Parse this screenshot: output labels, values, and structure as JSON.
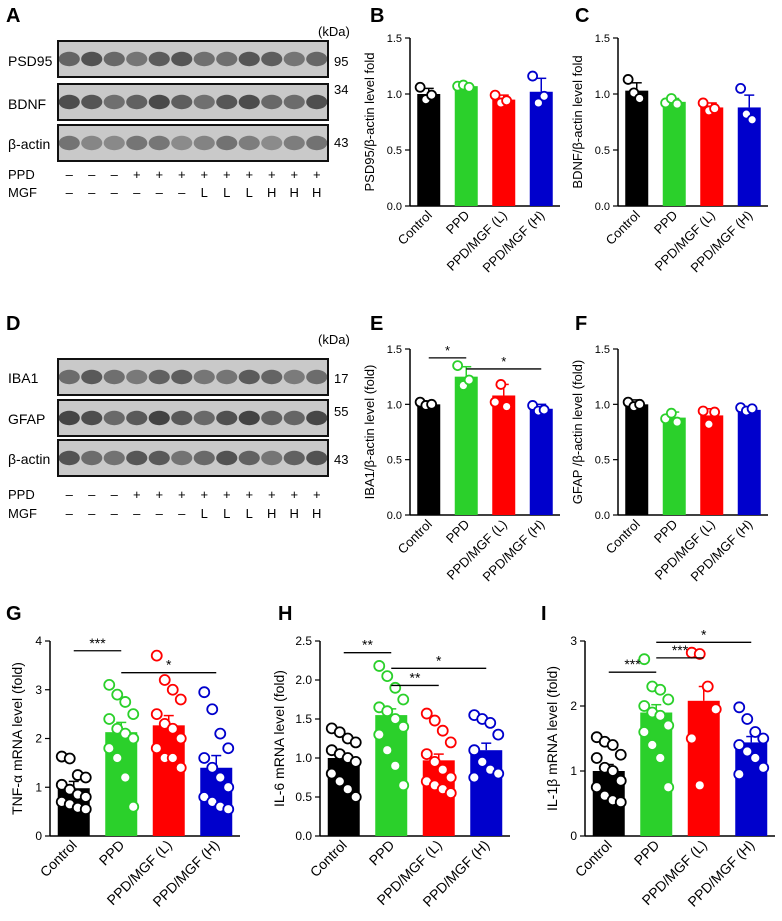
{
  "figure": {
    "panel_letters": [
      "A",
      "B",
      "C",
      "D",
      "E",
      "F",
      "G",
      "H",
      "I"
    ],
    "colors": {
      "control": "#000000",
      "ppd": "#2bd02b",
      "mgf_low": "#ff0000",
      "mgf_high": "#0000cc",
      "blot_background": "#c9c9c9",
      "blot_band": "#2a2a2a"
    },
    "blot_a": {
      "kda_label": "(kDa)",
      "bands": [
        {
          "name": "PSD95",
          "kda": "95",
          "dark": 0.75
        },
        {
          "name": "BDNF",
          "kda": "34",
          "dark": 0.8
        },
        {
          "name": "β-actin",
          "kda": "43",
          "dark": 0.55
        }
      ],
      "ppd_label": "PPD",
      "mgf_label": "MGF",
      "ppd_row": [
        "–",
        "–",
        "–",
        "+",
        "+",
        "+",
        "+",
        "+",
        "+",
        "+",
        "+",
        "+"
      ],
      "mgf_row": [
        "–",
        "–",
        "–",
        "–",
        "–",
        "–",
        "L",
        "L",
        "L",
        "H",
        "H",
        "H"
      ]
    },
    "blot_d": {
      "kda_label": "(kDa)",
      "bands": [
        {
          "name": "IBA1",
          "kda": "17",
          "dark": 0.7
        },
        {
          "name": "GFAP",
          "kda": "55",
          "dark": 0.85
        },
        {
          "name": "β-actin",
          "kda": "43",
          "dark": 0.75
        }
      ],
      "ppd_label": "PPD",
      "mgf_label": "MGF",
      "ppd_row": [
        "–",
        "–",
        "–",
        "+",
        "+",
        "+",
        "+",
        "+",
        "+",
        "+",
        "+",
        "+"
      ],
      "mgf_row": [
        "–",
        "–",
        "–",
        "–",
        "–",
        "–",
        "L",
        "L",
        "L",
        "H",
        "H",
        "H"
      ]
    }
  },
  "chart_data": [
    {
      "panel": "B",
      "type": "bar",
      "categories": [
        "Control",
        "PPD",
        "PPD/MGF (L)",
        "PPD/MGF (H)"
      ],
      "values": [
        1.0,
        1.07,
        0.95,
        1.02
      ],
      "errors": [
        0.05,
        0.01,
        0.04,
        0.12
      ],
      "points": [
        [
          1.06,
          0.95,
          0.99
        ],
        [
          1.07,
          1.08,
          1.06
        ],
        [
          0.99,
          0.92,
          0.94
        ],
        [
          1.16,
          0.92,
          0.98
        ]
      ],
      "ylabel": "PSD95/β-actin level fold",
      "ylim": [
        0,
        1.5
      ],
      "yticks": [
        "0.0",
        "0.5",
        "1.0",
        "1.5"
      ],
      "significance": []
    },
    {
      "panel": "C",
      "type": "bar",
      "categories": [
        "Control",
        "PPD",
        "PPD/MGF (L)",
        "PPD/MGF (H)"
      ],
      "values": [
        1.03,
        0.93,
        0.88,
        0.88
      ],
      "errors": [
        0.07,
        0.03,
        0.04,
        0.11
      ],
      "points": [
        [
          1.13,
          1.01,
          0.96
        ],
        [
          0.92,
          0.96,
          0.91
        ],
        [
          0.92,
          0.85,
          0.87
        ],
        [
          1.05,
          0.82,
          0.77
        ]
      ],
      "ylabel": "BDNF/β-actin level fold",
      "ylim": [
        0,
        1.5
      ],
      "yticks": [
        "0.0",
        "0.5",
        "1.0",
        "1.5"
      ],
      "significance": []
    },
    {
      "panel": "E",
      "type": "bar",
      "categories": [
        "Control",
        "PPD",
        "PPD/MGF (L)",
        "PPD/MGF (H)"
      ],
      "values": [
        1.0,
        1.25,
        1.08,
        0.96
      ],
      "errors": [
        0.03,
        0.09,
        0.1,
        0.04
      ],
      "points": [
        [
          1.02,
          0.99,
          1.0
        ],
        [
          1.35,
          1.17,
          1.22
        ],
        [
          1.02,
          1.18,
          0.98
        ],
        [
          0.99,
          0.94,
          0.95
        ]
      ],
      "ylabel": "IBA1/β-actin level (fold)",
      "ylim": [
        0,
        1.5
      ],
      "yticks": [
        "0.0",
        "0.5",
        "1.0",
        "1.5"
      ],
      "significance": [
        {
          "from": 0,
          "to": 1,
          "label": "*",
          "y": 1.42
        },
        {
          "from": 1,
          "to": 3,
          "label": "*",
          "y": 1.32
        }
      ]
    },
    {
      "panel": "F",
      "type": "bar",
      "categories": [
        "Control",
        "PPD",
        "PPD/MGF (L)",
        "PPD/MGF (H)"
      ],
      "values": [
        1.0,
        0.88,
        0.9,
        0.95
      ],
      "errors": [
        0.04,
        0.05,
        0.06,
        0.02
      ],
      "points": [
        [
          1.02,
          0.98,
          1.0
        ],
        [
          0.87,
          0.92,
          0.84
        ],
        [
          0.94,
          0.82,
          0.93
        ],
        [
          0.97,
          0.94,
          0.96
        ]
      ],
      "ylabel": "GFAP /β-actin level (fold)",
      "ylim": [
        0,
        1.5
      ],
      "yticks": [
        "0.0",
        "0.5",
        "1.0",
        "1.5"
      ],
      "significance": []
    },
    {
      "panel": "G",
      "type": "bar",
      "categories": [
        "Control",
        "PPD",
        "PPD/MGF (L)",
        "PPD/MGF (H)"
      ],
      "values": [
        0.98,
        2.13,
        2.27,
        1.4
      ],
      "errors": [
        0.14,
        0.2,
        0.2,
        0.25
      ],
      "points": [
        [
          1.63,
          1.59,
          1.25,
          1.2,
          1.05,
          0.95,
          0.85,
          0.8,
          0.7,
          0.65,
          0.58,
          0.55
        ],
        [
          3.1,
          2.9,
          2.75,
          2.5,
          2.4,
          2.2,
          2.1,
          2.0,
          1.8,
          1.6,
          1.2,
          0.6
        ],
        [
          3.7,
          3.2,
          3.0,
          2.8,
          2.5,
          2.3,
          2.2,
          2.0,
          1.8,
          1.6,
          1.6,
          1.4
        ],
        [
          2.95,
          2.6,
          2.1,
          1.8,
          1.6,
          1.4,
          1.2,
          1.0,
          0.8,
          0.7,
          0.6,
          0.55
        ]
      ],
      "ylabel": "TNF-α mRNA  level (fold)",
      "ylim": [
        0,
        4
      ],
      "yticks": [
        "0",
        "1",
        "2",
        "3",
        "4"
      ],
      "significance": [
        {
          "from": 0,
          "to": 1,
          "label": "***",
          "y": 3.8
        },
        {
          "from": 1,
          "to": 3,
          "label": "*",
          "y": 3.35
        }
      ]
    },
    {
      "panel": "H",
      "type": "bar",
      "categories": [
        "Control",
        "PPD",
        "PPD/MGF (L)",
        "PPD/MGF (H)"
      ],
      "values": [
        1.0,
        1.55,
        0.97,
        1.1
      ],
      "errors": [
        0.06,
        0.08,
        0.08,
        0.09
      ],
      "points": [
        [
          1.38,
          1.33,
          1.25,
          1.2,
          1.1,
          1.05,
          1.0,
          0.95,
          0.8,
          0.7,
          0.6,
          0.5
        ],
        [
          2.18,
          2.05,
          1.9,
          1.75,
          1.65,
          1.6,
          1.5,
          1.4,
          1.3,
          1.1,
          0.9,
          0.65
        ],
        [
          1.57,
          1.48,
          1.35,
          1.2,
          1.05,
          0.95,
          0.85,
          0.75,
          0.7,
          0.65,
          0.6,
          0.55
        ],
        [
          1.55,
          1.5,
          1.45,
          1.3,
          1.1,
          0.95,
          0.85,
          0.8,
          0.75
        ]
      ],
      "ylabel": "IL-6 mRNA  level (fold)",
      "ylim": [
        0,
        2.5
      ],
      "yticks": [
        "0.0",
        "0.5",
        "1.0",
        "1.5",
        "2.0",
        "2.5"
      ],
      "significance": [
        {
          "from": 0,
          "to": 1,
          "label": "**",
          "y": 2.35
        },
        {
          "from": 1,
          "to": 3,
          "label": "*",
          "y": 2.15
        },
        {
          "from": 1,
          "to": 2,
          "label": "**",
          "y": 1.93
        }
      ]
    },
    {
      "panel": "I",
      "type": "bar",
      "categories": [
        "Control",
        "PPD",
        "PPD/MGF (L)",
        "PPD/MGF (H)"
      ],
      "values": [
        1.0,
        1.9,
        2.08,
        1.44
      ],
      "errors": [
        0.1,
        0.12,
        0.22,
        0.09
      ],
      "points": [
        [
          1.52,
          1.45,
          1.4,
          1.25,
          1.2,
          1.05,
          1.0,
          0.85,
          0.75,
          0.62,
          0.55,
          0.52
        ],
        [
          2.72,
          2.3,
          2.25,
          2.1,
          2.0,
          1.9,
          1.85,
          1.7,
          1.6,
          1.4,
          1.2,
          0.75
        ],
        [
          2.82,
          2.8,
          2.3,
          1.95,
          1.5,
          0.78
        ],
        [
          1.98,
          1.8,
          1.6,
          1.5,
          1.4,
          1.3,
          1.2,
          1.05,
          0.95
        ]
      ],
      "ylabel": "IL-1β mRNA  level (fold)",
      "ylim": [
        0,
        3
      ],
      "yticks": [
        "0",
        "1",
        "2",
        "3"
      ],
      "significance": [
        {
          "from": 0,
          "to": 1,
          "label": "***",
          "y": 2.52
        },
        {
          "from": 1,
          "to": 2,
          "label": "***",
          "y": 2.74
        },
        {
          "from": 1,
          "to": 3,
          "label": "*",
          "y": 2.98
        }
      ]
    }
  ]
}
